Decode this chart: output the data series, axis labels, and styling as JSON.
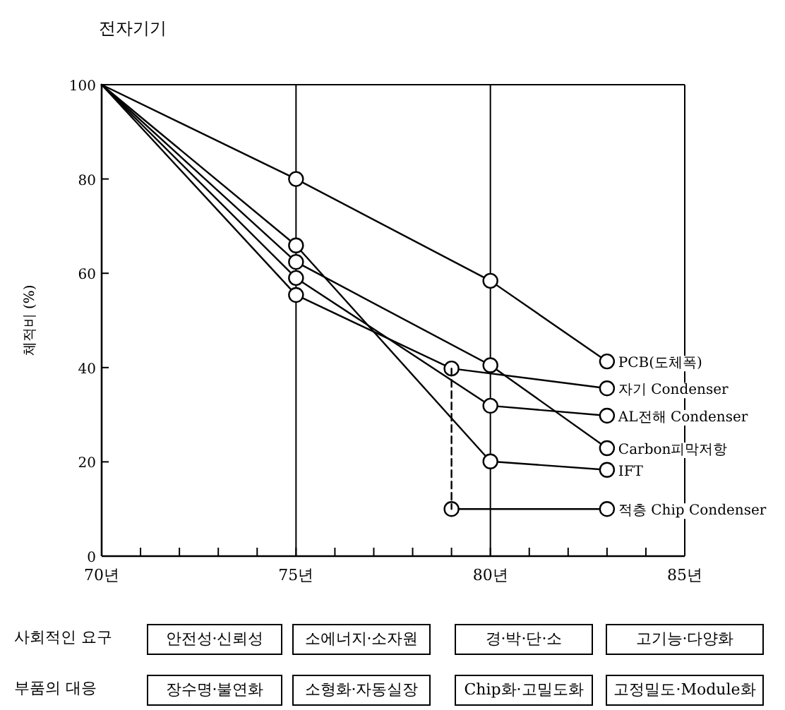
{
  "chart_data": {
    "type": "line",
    "title": "전자기기",
    "ylabel": "체적비 (%)",
    "xlim": [
      70,
      85
    ],
    "ylim": [
      0,
      100
    ],
    "xticks": [
      {
        "value": 70,
        "label": "70년"
      },
      {
        "value": 71,
        "label": null
      },
      {
        "value": 72,
        "label": null
      },
      {
        "value": 73,
        "label": null
      },
      {
        "value": 74,
        "label": null
      },
      {
        "value": 75,
        "label": "75년"
      },
      {
        "value": 76,
        "label": null
      },
      {
        "value": 77,
        "label": null
      },
      {
        "value": 78,
        "label": null
      },
      {
        "value": 79,
        "label": null
      },
      {
        "value": 80,
        "label": "80년"
      },
      {
        "value": 81,
        "label": null
      },
      {
        "value": 82,
        "label": null
      },
      {
        "value": 83,
        "label": null
      },
      {
        "value": 84,
        "label": null
      },
      {
        "value": 85,
        "label": "85년"
      }
    ],
    "yticks": [
      0,
      20,
      40,
      60,
      80,
      100
    ],
    "ref_lines": [
      {
        "axis": "x",
        "value": 75
      },
      {
        "axis": "x",
        "value": 80
      }
    ],
    "marker": "circle",
    "line_style": "solid",
    "series": [
      {
        "name": "PCB(도체폭)",
        "color": "#000000",
        "x": [
          70,
          75,
          80,
          83
        ],
        "values": [
          100,
          80,
          58.4,
          41.3
        ]
      },
      {
        "name": "자기 Condenser",
        "color": "#000000",
        "x": [
          70,
          75,
          79,
          83
        ],
        "values": [
          100,
          55.4,
          39.8,
          35.6
        ]
      },
      {
        "name": "AL전해 Condenser",
        "color": "#000000",
        "x": [
          70,
          75,
          80,
          83
        ],
        "values": [
          100,
          59,
          31.9,
          29.8
        ]
      },
      {
        "name": "Carbon피막저항",
        "color": "#000000",
        "x": [
          70,
          75,
          80,
          83
        ],
        "values": [
          100,
          62.4,
          40.5,
          22.9
        ]
      },
      {
        "name": "IFT",
        "color": "#000000",
        "x": [
          70,
          75,
          80,
          83
        ],
        "values": [
          100,
          65.9,
          20.1,
          18.3
        ]
      },
      {
        "name": "적층 Chip Condenser",
        "color": "#000000",
        "x": [
          79,
          83
        ],
        "values": [
          10,
          10
        ]
      },
      {
        "color": "#000000",
        "x": [
          79,
          79
        ],
        "values": [
          39.8,
          10
        ],
        "line_style": "dashed",
        "marker": "none"
      }
    ],
    "annotations": [
      "사회적인 요구",
      "안전성·신뢰성",
      "소에너지·소자원",
      "경·박·단·소",
      "고기능·다양화",
      "부품의 대응",
      "장수명·불연화",
      "소형화·자동실장",
      "Chip화·고밀도화",
      "고정밀도·Module화"
    ]
  }
}
